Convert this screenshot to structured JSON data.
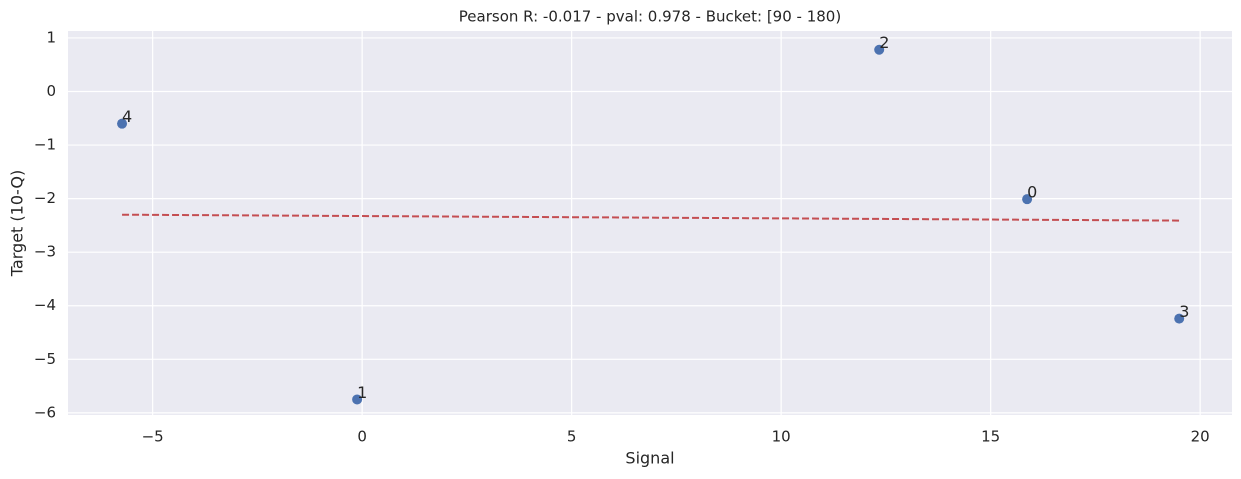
{
  "chart_data": {
    "type": "scatter",
    "title": "Pearson R: -0.017 - pval: 0.978 - Bucket: [90 - 180)",
    "xlabel": "Signal",
    "ylabel": "Target (10-Q)",
    "x": [
      15.87,
      -0.12,
      12.34,
      19.5,
      -5.73
    ],
    "y": [
      -2.01,
      -5.75,
      0.78,
      -4.24,
      -0.6
    ],
    "point_labels": [
      "0",
      "1",
      "2",
      "3",
      "4"
    ],
    "color": "#4c72b0",
    "fit": {
      "x": [
        -5.73,
        19.5
      ],
      "y": [
        -2.3,
        -2.41
      ],
      "color": "#c44e52",
      "style": "dashed"
    },
    "xlim": [
      -7.02,
      20.76
    ],
    "ylim": [
      -6.04,
      1.13
    ],
    "xticks": [
      {
        "value": -5,
        "label": "−5"
      },
      0,
      5,
      10,
      15,
      20
    ],
    "yticks": [
      1,
      0,
      {
        "value": -1,
        "label": "−1"
      },
      {
        "value": -2,
        "label": "−2"
      },
      {
        "value": -3,
        "label": "−3"
      },
      {
        "value": -4,
        "label": "−4"
      },
      {
        "value": -5,
        "label": "−5"
      },
      {
        "value": -6,
        "label": "−6"
      }
    ],
    "grid": true
  }
}
